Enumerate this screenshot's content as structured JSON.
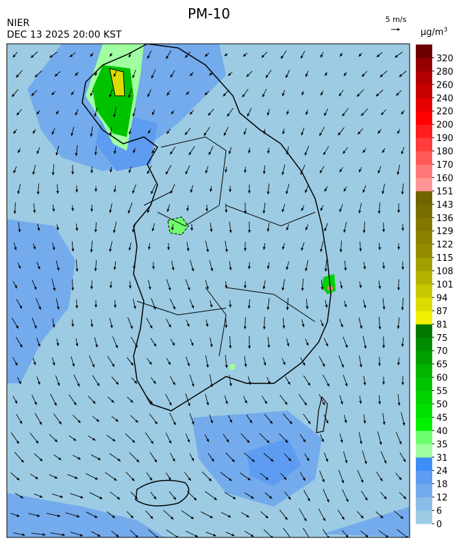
{
  "header": {
    "title": "PM-10",
    "source": "NIER",
    "datetime": "DEC 13 2025 20:00 KST",
    "wind_scale": "5 m/s"
  },
  "legend": {
    "unit": "μg/m",
    "unit_sup": "3",
    "ticks": [
      0,
      6,
      12,
      18,
      24,
      31,
      35,
      40,
      45,
      50,
      55,
      60,
      65,
      70,
      75,
      81,
      87,
      94,
      101,
      108,
      115,
      122,
      129,
      136,
      143,
      151,
      160,
      170,
      180,
      190,
      200,
      220,
      240,
      260,
      280,
      320
    ],
    "colors": [
      "#9dcbe3",
      "#8bbde9",
      "#74abec",
      "#5d9cf0",
      "#3d8ef6",
      "#a0ffa0",
      "#6eff6e",
      "#00f000",
      "#00e100",
      "#00d200",
      "#00c300",
      "#00b400",
      "#00a000",
      "#008c00",
      "#007800",
      "#f0f000",
      "#dcdc00",
      "#c8c800",
      "#b4b400",
      "#a0a000",
      "#968c00",
      "#8c8200",
      "#827800",
      "#786e00",
      "#6e6400",
      "#ff9696",
      "#ff7878",
      "#ff5a5a",
      "#ff3c3c",
      "#ff1e1e",
      "#ff0000",
      "#e60000",
      "#c80000",
      "#b40000",
      "#960000",
      "#6e0000"
    ]
  }
}
